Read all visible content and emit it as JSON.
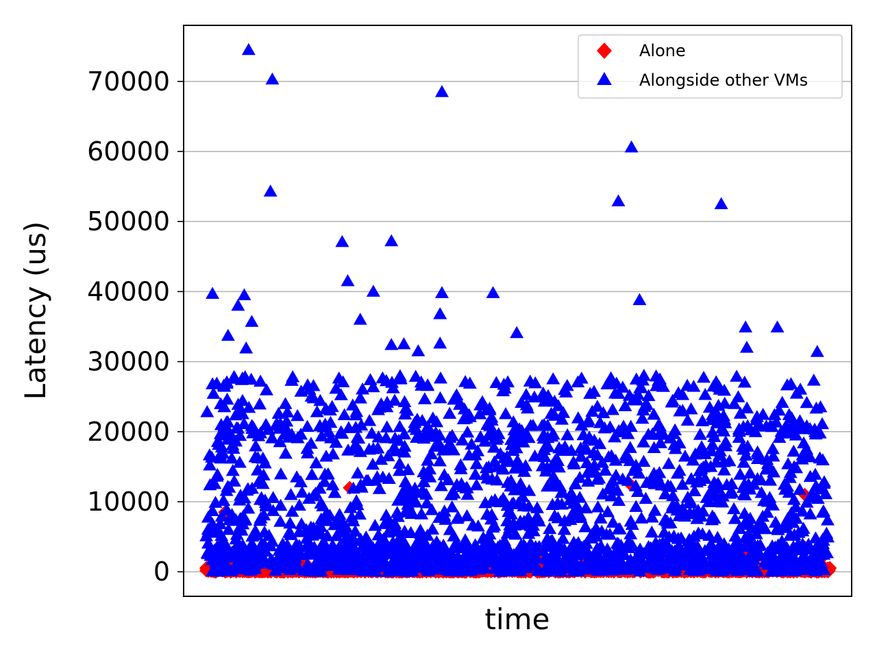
{
  "chart_data": {
    "type": "scatter",
    "title": "",
    "xlabel": "time",
    "ylabel": "Latency (us)",
    "ylim": [
      -3500,
      78000
    ],
    "yticks": [
      0,
      10000,
      20000,
      30000,
      40000,
      50000,
      60000,
      70000
    ],
    "ytick_labels": [
      "0",
      "10000",
      "20000",
      "30000",
      "40000",
      "50000",
      "60000",
      "70000"
    ],
    "x_tick_labels": "none",
    "grid": "horizontal",
    "legend_position": "top-right",
    "n_samples_per_series": 2000,
    "series": [
      {
        "name": "Alone",
        "marker": "diamond",
        "color": "#ff0000",
        "baseline_value": 0,
        "notable_points": [
          {
            "x": 0.03,
            "y": 8500
          },
          {
            "x": 0.23,
            "y": 12000
          },
          {
            "x": 0.68,
            "y": 12500
          },
          {
            "x": 0.96,
            "y": 11000
          },
          {
            "x": 0.96,
            "y": 3500
          },
          {
            "x": 0.87,
            "y": 2500
          },
          {
            "x": 0.12,
            "y": 2000
          },
          {
            "x": 0.0,
            "y": 500
          },
          {
            "x": 1.0,
            "y": 500
          }
        ]
      },
      {
        "name": "Alongside other VMs",
        "marker": "triangle",
        "color": "#0000ff",
        "baseline_value": 0,
        "typical_range": [
          0,
          28000
        ],
        "outlier_points": [
          {
            "x": 0.068,
            "y": 74500
          },
          {
            "x": 0.106,
            "y": 70300
          },
          {
            "x": 0.378,
            "y": 68500
          },
          {
            "x": 0.682,
            "y": 60600
          },
          {
            "x": 0.661,
            "y": 52900
          },
          {
            "x": 0.826,
            "y": 52500
          },
          {
            "x": 0.103,
            "y": 54300
          },
          {
            "x": 0.218,
            "y": 47100
          },
          {
            "x": 0.297,
            "y": 47200
          },
          {
            "x": 0.227,
            "y": 41500
          },
          {
            "x": 0.268,
            "y": 40000
          },
          {
            "x": 0.378,
            "y": 39800
          },
          {
            "x": 0.46,
            "y": 39800
          },
          {
            "x": 0.01,
            "y": 39700
          },
          {
            "x": 0.061,
            "y": 39500
          },
          {
            "x": 0.695,
            "y": 38800
          },
          {
            "x": 0.051,
            "y": 38000
          },
          {
            "x": 0.375,
            "y": 36800
          },
          {
            "x": 0.247,
            "y": 36000
          },
          {
            "x": 0.073,
            "y": 35700
          },
          {
            "x": 0.865,
            "y": 34900
          },
          {
            "x": 0.916,
            "y": 34900
          },
          {
            "x": 0.498,
            "y": 34100
          },
          {
            "x": 0.035,
            "y": 33700
          },
          {
            "x": 0.297,
            "y": 32400
          },
          {
            "x": 0.317,
            "y": 32500
          },
          {
            "x": 0.375,
            "y": 32600
          },
          {
            "x": 0.064,
            "y": 31900
          },
          {
            "x": 0.867,
            "y": 32000
          },
          {
            "x": 0.34,
            "y": 31500
          },
          {
            "x": 0.98,
            "y": 31400
          }
        ]
      }
    ]
  }
}
